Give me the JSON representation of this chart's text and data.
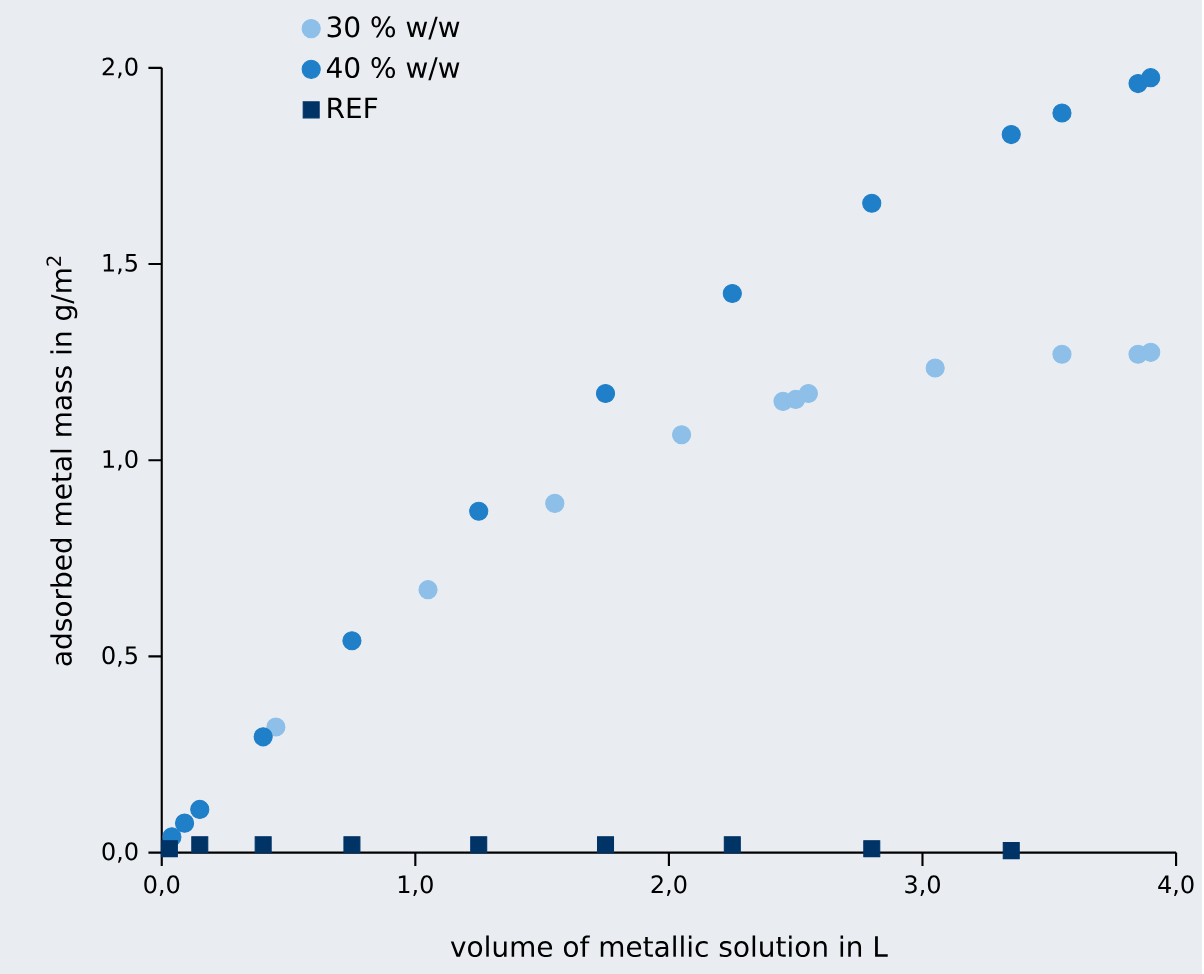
{
  "chart_data": {
    "type": "scatter",
    "xlabel": "volume of metallic solution in L",
    "ylabel": "adsorbed metal mass in g/m$^{2}$",
    "xlim": [
      0,
      4
    ],
    "ylim": [
      0,
      2
    ],
    "xticks": [
      {
        "value": 0,
        "label": "0,0"
      },
      {
        "value": 1,
        "label": "1,0"
      },
      {
        "value": 2,
        "label": "2,0"
      },
      {
        "value": 3,
        "label": "3,0"
      },
      {
        "value": 4,
        "label": "4,0"
      }
    ],
    "yticks": [
      {
        "value": 0,
        "label": "0,0"
      },
      {
        "value": 0.5,
        "label": "0,5"
      },
      {
        "value": 1,
        "label": "1,0"
      },
      {
        "value": 1.5,
        "label": "1,5"
      },
      {
        "value": 2,
        "label": "2,0"
      }
    ],
    "grid": false,
    "legend": "top left",
    "series": [
      {
        "name": "30 % w/w",
        "color": "#8dbfe8",
        "marker": "circle",
        "x": [
          0.45,
          1.05,
          1.55,
          2.05,
          2.45,
          2.5,
          2.55,
          3.05,
          3.55,
          3.85,
          3.9
        ],
        "values": [
          0.32,
          0.67,
          0.89,
          1.065,
          1.15,
          1.155,
          1.17,
          1.235,
          1.27,
          1.27,
          1.275
        ]
      },
      {
        "name": "40 % w/w",
        "color": "#1f7fc8",
        "marker": "circle",
        "x": [
          0.04,
          0.09,
          0.15,
          0.4,
          0.75,
          1.25,
          1.75,
          2.25,
          2.8,
          3.35,
          3.55,
          3.85,
          3.9
        ],
        "values": [
          0.04,
          0.075,
          0.11,
          0.295,
          0.54,
          0.87,
          1.17,
          1.425,
          1.655,
          1.83,
          1.885,
          1.96,
          1.975
        ]
      },
      {
        "name": "REF",
        "color": "#003366",
        "marker": "square",
        "x": [
          0.03,
          0.15,
          0.4,
          0.75,
          1.25,
          1.75,
          2.25,
          2.8,
          3.35
        ],
        "values": [
          0.01,
          0.02,
          0.02,
          0.02,
          0.02,
          0.02,
          0.02,
          0.01,
          0.005
        ]
      }
    ]
  }
}
